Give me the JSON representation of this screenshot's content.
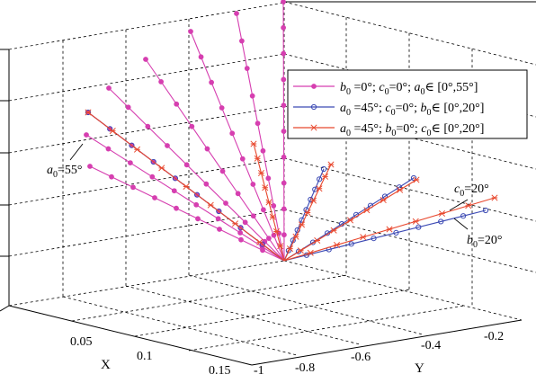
{
  "chart_data": {
    "type": "line3d",
    "axes": {
      "x": {
        "label": "X",
        "ticks": [
          "0.05",
          "0.1",
          "0.15"
        ]
      },
      "y": {
        "label": "Y",
        "ticks": [
          "-1",
          "-0.8",
          "-0.6",
          "-0.4",
          "-0.2"
        ]
      }
    },
    "grid": true,
    "legend": {
      "placement": "top-right",
      "entries": [
        {
          "key": "b_series",
          "html": "<tspan font-style='italic'>b</tspan><tspan dy='4' font-size='10'>0</tspan><tspan dy='-4'> =0°; </tspan><tspan font-style='italic'>c</tspan><tspan dy='4' font-size='10'>0</tspan><tspan dy='-4'>=0°; </tspan><tspan font-style='italic'>a</tspan><tspan dy='4' font-size='10'>0</tspan><tspan dy='-4'>∈ [0°,55°]</tspan>",
          "color": "#d63fb0",
          "marker": "dot"
        },
        {
          "key": "a_series_b",
          "html": "<tspan font-style='italic'>a</tspan><tspan dy='4' font-size='10'>0</tspan><tspan dy='-4'> =45°; </tspan><tspan font-style='italic'>c</tspan><tspan dy='4' font-size='10'>0</tspan><tspan dy='-4'>=0°; </tspan><tspan font-style='italic'>b</tspan><tspan dy='4' font-size='10'>0</tspan><tspan dy='-4'>∈ [0°,20°]</tspan>",
          "color": "#3c4ab4",
          "marker": "circle"
        },
        {
          "key": "a_series_c",
          "html": "<tspan font-style='italic'>a</tspan><tspan dy='4' font-size='10'>0</tspan><tspan dy='-4'> =45°; </tspan><tspan font-style='italic'>b</tspan><tspan dy='4' font-size='10'>0</tspan><tspan dy='-4'>=0°; </tspan><tspan font-style='italic'>c</tspan><tspan dy='4' font-size='10'>0</tspan><tspan dy='-4'>∈ [0°,20°]</tspan>",
          "color": "#e8482e",
          "marker": "x"
        }
      ]
    },
    "annotations": [
      {
        "key": "a55",
        "html": "<tspan font-style='italic'>a</tspan><tspan dy='4' font-size='10'>0</tspan><tspan dy='-4'>=55°</tspan>"
      },
      {
        "key": "c20",
        "html": "<tspan font-style='italic'>c</tspan><tspan dy='4' font-size='10'>0</tspan><tspan dy='-4'>=20°</tspan>"
      },
      {
        "key": "b20",
        "html": "<tspan font-style='italic'>b</tspan><tspan dy='4' font-size='10'>0</tspan><tspan dy='-4'>=20°</tspan>"
      }
    ],
    "series": [
      {
        "group": "b0=0°; c0=0°; a0∈[0°,55°]",
        "color": "#d63fb0",
        "marker": "dot",
        "lines": [
          {
            "a0": 0,
            "end": [
              315,
              2
            ],
            "markers": 10
          },
          {
            "a0": 10,
            "end": [
              263,
              15
            ],
            "markers": 9
          },
          {
            "a0": 20,
            "end": [
              212,
              35
            ],
            "markers": 9
          },
          {
            "a0": 30,
            "end": [
              162,
              66
            ],
            "markers": 9
          },
          {
            "a0": 40,
            "end": [
              121,
              98
            ],
            "markers": 9
          },
          {
            "a0": 45,
            "end": [
              98,
              125
            ],
            "markers": 9
          },
          {
            "a0": 50,
            "end": [
              96,
              150
            ],
            "markers": 9
          },
          {
            "a0": 55,
            "end": [
              100,
              185
            ],
            "markers": 9
          }
        ]
      },
      {
        "group": "a0=45°; c0=0°; b0∈[0°,20°]",
        "color": "#3c4ab4",
        "marker": "circle",
        "lines": [
          {
            "b0": 0,
            "end": [
              98,
              125
            ],
            "markers": 9
          },
          {
            "b0": 10,
            "end": [
              360,
              188
            ],
            "markers": 9
          },
          {
            "b0": 15,
            "end": [
              460,
              198
            ],
            "markers": 9
          },
          {
            "b0": 20,
            "end": [
              540,
              234
            ],
            "markers": 9
          }
        ]
      },
      {
        "group": "a0=45°; b0=0°; c0∈[0°,20°]",
        "color": "#e8482e",
        "marker": "x",
        "lines": [
          {
            "c0": 0,
            "end": [
              98,
              125
            ],
            "markers": 8
          },
          {
            "c0": 5,
            "end": [
              282,
              160
            ],
            "markers": 8
          },
          {
            "c0": 10,
            "end": [
              368,
              183
            ],
            "markers": 8
          },
          {
            "c0": 15,
            "end": [
              463,
              200
            ],
            "markers": 8
          },
          {
            "c0": 20,
            "end": [
              550,
              220
            ],
            "markers": 8
          }
        ]
      }
    ]
  }
}
